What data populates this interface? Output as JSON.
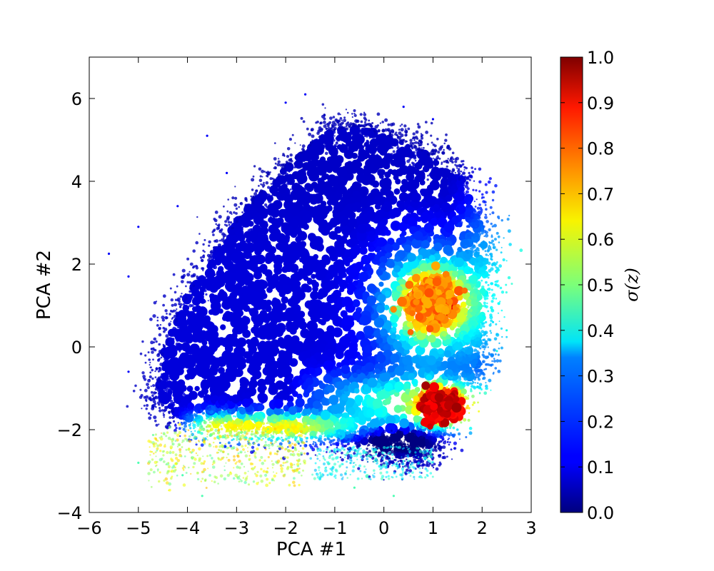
{
  "chart_data": {
    "type": "scatter",
    "title": "",
    "xlabel": "PCA #1",
    "ylabel": "PCA #2",
    "xlim": [
      -6,
      3
    ],
    "ylim": [
      -4,
      7
    ],
    "xticks": [
      -6,
      -5,
      -4,
      -3,
      -2,
      -1,
      0,
      1,
      2,
      3
    ],
    "yticks": [
      -4,
      -2,
      0,
      2,
      4,
      6
    ],
    "xtick_labels": [
      "−6",
      "−5",
      "−4",
      "−3",
      "−2",
      "−1",
      "0",
      "1",
      "2",
      "3"
    ],
    "ytick_labels": [
      "−4",
      "−2",
      "0",
      "2",
      "4",
      "6"
    ],
    "colormap": "jet",
    "colorbar": {
      "label": "σ(z)",
      "range": [
        0.0,
        1.0
      ],
      "ticks": [
        0.0,
        0.1,
        0.2,
        0.3,
        0.4,
        0.5,
        0.6,
        0.7,
        0.8,
        0.9,
        1.0
      ],
      "tick_labels": [
        "0.0",
        "0.1",
        "0.2",
        "0.3",
        "0.4",
        "0.5",
        "0.6",
        "0.7",
        "0.8",
        "0.9",
        "1.0"
      ]
    },
    "grid": false,
    "density_regions": [
      {
        "x": [
          -4.5,
          2.0
        ],
        "y": [
          -2.3,
          5.8
        ],
        "color_value": 0.08
      },
      {
        "x": [
          0.6,
          1.4
        ],
        "y": [
          0.6,
          1.6
        ],
        "color_value": 0.8
      },
      {
        "x": [
          0.8,
          1.5
        ],
        "y": [
          -1.8,
          -1.0
        ],
        "color_value": 0.95
      },
      {
        "x": [
          -4.0,
          -1.5
        ],
        "y": [
          -2.4,
          -1.6
        ],
        "color_value": 0.6
      },
      {
        "x": [
          -2.0,
          1.5
        ],
        "y": [
          -3.0,
          -2.0
        ],
        "color_value": 0.2
      }
    ]
  }
}
